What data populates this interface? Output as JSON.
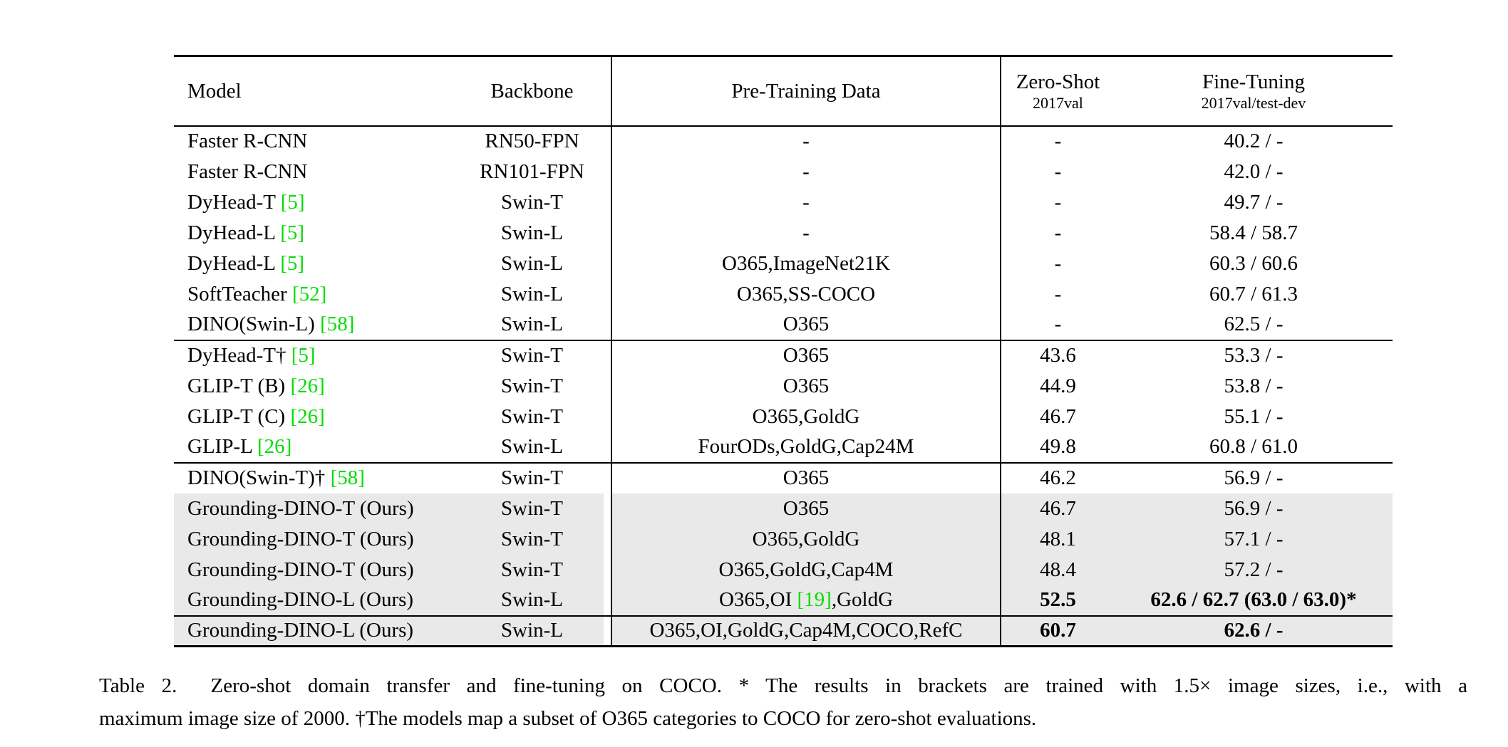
{
  "colors": {
    "citation_green": "#00dd00",
    "row_highlight": "#e9e9e9",
    "text": "#000000",
    "background": "#ffffff"
  },
  "table": {
    "columns": [
      {
        "label": "Model",
        "sublabel": "",
        "align": "left"
      },
      {
        "label": "Backbone",
        "sublabel": "",
        "align": "center"
      },
      {
        "label": "Pre-Training Data",
        "sublabel": "",
        "align": "center"
      },
      {
        "label": "Zero-Shot",
        "sublabel": "2017val",
        "align": "center"
      },
      {
        "label": "Fine-Tuning",
        "sublabel": "2017val/test-dev",
        "align": "center"
      }
    ],
    "groups": [
      {
        "rows": [
          {
            "model": "Faster R-CNN",
            "backbone": "RN50-FPN",
            "pretrain": "-",
            "zeroshot": "-",
            "finetune": "40.2 / -",
            "highlight": false,
            "bold": false
          },
          {
            "model": "Faster R-CNN",
            "backbone": "RN101-FPN",
            "pretrain": "-",
            "zeroshot": "-",
            "finetune": "42.0 / -",
            "highlight": false,
            "bold": false
          },
          {
            "model": "DyHead-T [5]",
            "backbone": "Swin-T",
            "pretrain": "-",
            "zeroshot": "-",
            "finetune": "49.7 / -",
            "highlight": false,
            "bold": false
          },
          {
            "model": "DyHead-L [5]",
            "backbone": "Swin-L",
            "pretrain": "-",
            "zeroshot": "-",
            "finetune": "58.4 / 58.7",
            "highlight": false,
            "bold": false
          },
          {
            "model": "DyHead-L [5]",
            "backbone": "Swin-L",
            "pretrain": "O365,ImageNet21K",
            "zeroshot": "-",
            "finetune": "60.3 / 60.6",
            "highlight": false,
            "bold": false
          },
          {
            "model": "SoftTeacher [52]",
            "backbone": "Swin-L",
            "pretrain": "O365,SS-COCO",
            "zeroshot": "-",
            "finetune": "60.7 / 61.3",
            "highlight": false,
            "bold": false
          },
          {
            "model": "DINO(Swin-L) [58]",
            "backbone": "Swin-L",
            "pretrain": "O365",
            "zeroshot": "-",
            "finetune": "62.5 / -",
            "highlight": false,
            "bold": false
          }
        ]
      },
      {
        "rows": [
          {
            "model": "DyHead-T† [5]",
            "backbone": "Swin-T",
            "pretrain": "O365",
            "zeroshot": "43.6",
            "finetune": "53.3 / -",
            "highlight": false,
            "bold": false
          },
          {
            "model": "GLIP-T (B) [26]",
            "backbone": "Swin-T",
            "pretrain": "O365",
            "zeroshot": "44.9",
            "finetune": "53.8 / -",
            "highlight": false,
            "bold": false
          },
          {
            "model": "GLIP-T (C) [26]",
            "backbone": "Swin-T",
            "pretrain": "O365,GoldG",
            "zeroshot": "46.7",
            "finetune": "55.1 / -",
            "highlight": false,
            "bold": false
          },
          {
            "model": "GLIP-L [26]",
            "backbone": "Swin-L",
            "pretrain": "FourODs,GoldG,Cap24M",
            "zeroshot": "49.8",
            "finetune": "60.8 / 61.0",
            "highlight": false,
            "bold": false
          }
        ]
      },
      {
        "rows": [
          {
            "model": "DINO(Swin-T)† [58]",
            "backbone": "Swin-T",
            "pretrain": "O365",
            "zeroshot": "46.2",
            "finetune": "56.9 / -",
            "highlight": false,
            "bold": false
          },
          {
            "model": "Grounding-DINO-T (Ours)",
            "backbone": "Swin-T",
            "pretrain": "O365",
            "zeroshot": "46.7",
            "finetune": "56.9 / -",
            "highlight": true,
            "bold": false
          },
          {
            "model": "Grounding-DINO-T (Ours)",
            "backbone": "Swin-T",
            "pretrain": "O365,GoldG",
            "zeroshot": "48.1",
            "finetune": "57.1 / -",
            "highlight": true,
            "bold": false
          },
          {
            "model": "Grounding-DINO-T (Ours)",
            "backbone": "Swin-T",
            "pretrain": "O365,GoldG,Cap4M",
            "zeroshot": "48.4",
            "finetune": "57.2 / -",
            "highlight": true,
            "bold": false
          },
          {
            "model": "Grounding-DINO-L (Ours)",
            "backbone": "Swin-L",
            "pretrain": "O365,OI [19],GoldG",
            "zeroshot": "52.5",
            "finetune": "62.6 / 62.7 (63.0 / 63.0)*",
            "highlight": true,
            "bold": true
          }
        ]
      },
      {
        "rows": [
          {
            "model": "Grounding-DINO-L (Ours)",
            "backbone": "Swin-L",
            "pretrain": "O365,OI,GoldG,Cap4M,COCO,RefC",
            "zeroshot": "60.7",
            "finetune": "62.6 / -",
            "highlight": true,
            "bold": true
          }
        ]
      }
    ]
  },
  "caption": {
    "lines": [
      "Table 2.  Zero-shot domain transfer and fine-tuning on COCO. * The results in brackets are trained with 1.5× image sizes, i.e., with a",
      "maximum image size of 2000. †The models map a subset of O365 categories to COCO for zero-shot evaluations."
    ]
  }
}
